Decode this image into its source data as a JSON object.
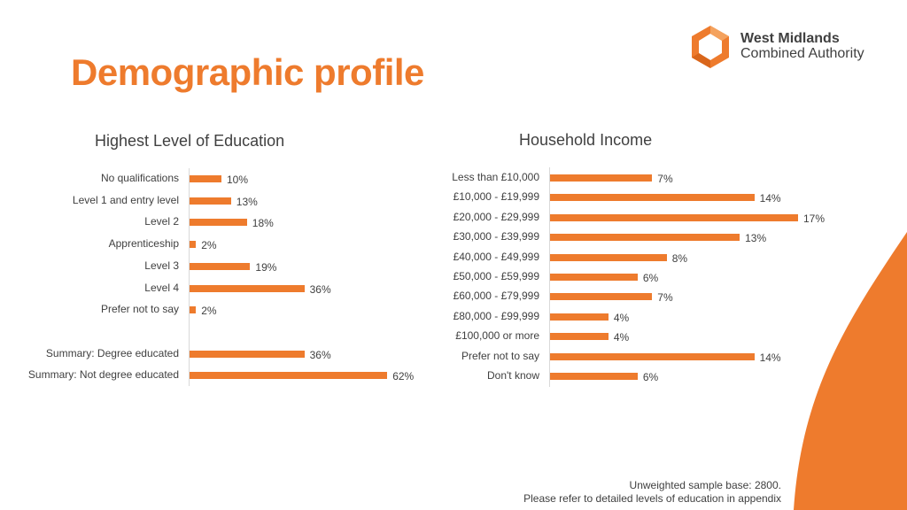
{
  "header": {
    "title": "Demographic profile",
    "logo_line1": "West Midlands",
    "logo_line2": "Combined Authority"
  },
  "colors": {
    "accent": "#ee7b2d",
    "text": "#404040",
    "axis": "#d9d9d9"
  },
  "chart_data": [
    {
      "type": "bar",
      "orientation": "horizontal",
      "title": "Highest Level of Education",
      "categories": [
        "No qualifications",
        "Level 1 and entry level",
        "Level 2",
        "Apprenticeship",
        "Level 3",
        "Level 4",
        "Prefer not to say",
        "",
        "Summary: Degree educated",
        "Summary: Not degree educated"
      ],
      "values": [
        10,
        13,
        18,
        2,
        19,
        36,
        2,
        null,
        36,
        62
      ],
      "labels": [
        "10%",
        "13%",
        "18%",
        "2%",
        "19%",
        "36%",
        "2%",
        "",
        "36%",
        "62%"
      ],
      "unit": "%",
      "xlim": [
        0,
        65
      ]
    },
    {
      "type": "bar",
      "orientation": "horizontal",
      "title": "Household Income",
      "categories": [
        "Less than £10,000",
        "£10,000 - £19,999",
        "£20,000 - £29,999",
        "£30,000 - £39,999",
        "£40,000 - £49,999",
        "£50,000 - £59,999",
        "£60,000 - £79,999",
        "£80,000 - £99,999",
        "£100,000 or more",
        "Prefer not to say",
        "Don't know"
      ],
      "values": [
        7,
        14,
        17,
        13,
        8,
        6,
        7,
        4,
        4,
        14,
        6
      ],
      "labels": [
        "7%",
        "14%",
        "17%",
        "13%",
        "8%",
        "6%",
        "7%",
        "4%",
        "4%",
        "14%",
        "6%"
      ],
      "unit": "%",
      "xlim": [
        0,
        17
      ]
    }
  ],
  "footnote": {
    "line1": "Unweighted sample base: 2800.",
    "line2": "Please refer to detailed levels of education in appendix"
  }
}
